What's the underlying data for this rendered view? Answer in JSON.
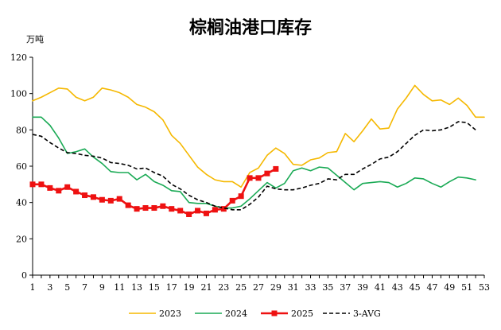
{
  "chart_data": {
    "type": "line",
    "title": "棕榈油港口库存",
    "ylabel": "万吨",
    "xlabel": "",
    "ylim": [
      0,
      120
    ],
    "yticks": [
      0,
      20,
      40,
      60,
      80,
      100,
      120
    ],
    "xlim": [
      1,
      53
    ],
    "xticks": [
      1,
      3,
      5,
      7,
      9,
      11,
      13,
      15,
      17,
      19,
      21,
      23,
      25,
      27,
      29,
      31,
      33,
      35,
      37,
      39,
      41,
      43,
      45,
      47,
      49,
      51,
      53
    ],
    "grid": false,
    "legend_position": "bottom",
    "series": [
      {
        "name": "2023",
        "color": "#F5B800",
        "style": "solid",
        "marker": "none",
        "x": [
          1,
          2,
          3,
          4,
          5,
          6,
          7,
          8,
          9,
          10,
          11,
          12,
          13,
          14,
          15,
          16,
          17,
          18,
          19,
          20,
          21,
          22,
          23,
          24,
          25,
          26,
          27,
          28,
          29,
          30,
          31,
          32,
          33,
          34,
          35,
          36,
          37,
          38,
          39,
          40,
          41,
          42,
          43,
          44,
          45,
          46,
          47,
          48,
          49,
          50,
          51,
          52,
          53
        ],
        "y": [
          96,
          98,
          100.5,
          103,
          102.5,
          98,
          96,
          98,
          103,
          102,
          100.5,
          98,
          94,
          92.5,
          90,
          85.5,
          77,
          72.5,
          66,
          59.5,
          55.5,
          52.5,
          51.5,
          51.5,
          48.5,
          56.5,
          59,
          66,
          70,
          67,
          61,
          60.5,
          63.5,
          64.5,
          67.5,
          68,
          78,
          73.5,
          79.5,
          86,
          80.5,
          81,
          91.5,
          97.5,
          104.5,
          99.5,
          96,
          96.5,
          94,
          97.5,
          93.5,
          87,
          87
        ]
      },
      {
        "name": "2024",
        "color": "#1AAA55",
        "style": "solid",
        "marker": "none",
        "x": [
          1,
          2,
          3,
          4,
          5,
          6,
          7,
          8,
          9,
          10,
          11,
          12,
          13,
          14,
          15,
          16,
          17,
          18,
          19,
          20,
          21,
          22,
          23,
          24,
          25,
          26,
          27,
          28,
          29,
          30,
          31,
          32,
          33,
          34,
          35,
          36,
          37,
          38,
          39,
          40,
          41,
          42,
          43,
          44,
          45,
          46,
          47,
          48,
          49,
          50,
          51,
          52
        ],
        "y": [
          87,
          87,
          82.5,
          75.5,
          67,
          68,
          69.5,
          65,
          61.5,
          57,
          56.5,
          56.5,
          52.5,
          55.5,
          51.5,
          49.5,
          46.5,
          46,
          40,
          39.5,
          39.5,
          38,
          37,
          37,
          38,
          42,
          46.5,
          51,
          48,
          50.5,
          57.5,
          59,
          57.5,
          59.5,
          59,
          55,
          51,
          47,
          50.5,
          51,
          51.5,
          51,
          48.5,
          50.5,
          53.5,
          53,
          50.5,
          48.5,
          51.5,
          54,
          53.5,
          52.5
        ]
      },
      {
        "name": "2025",
        "color": "#EE1111",
        "style": "solid",
        "marker": "square",
        "x": [
          1,
          2,
          3,
          4,
          5,
          6,
          7,
          8,
          9,
          10,
          11,
          12,
          13,
          14,
          15,
          16,
          17,
          18,
          19,
          20,
          21,
          22,
          23,
          24,
          25,
          26,
          27,
          28,
          29
        ],
        "y": [
          50,
          50,
          48,
          46.5,
          48.5,
          46,
          44,
          43,
          41.5,
          41,
          42,
          38.5,
          36.5,
          37,
          37,
          38,
          36.5,
          35.5,
          33.5,
          35.5,
          34,
          36,
          36.5,
          41,
          43.5,
          53.5,
          53.5,
          56,
          58.5
        ]
      },
      {
        "name": "3-AVG",
        "color": "#000000",
        "style": "dashed",
        "marker": "none",
        "x": [
          1,
          2,
          3,
          4,
          5,
          6,
          7,
          8,
          9,
          10,
          11,
          12,
          13,
          14,
          15,
          16,
          17,
          18,
          19,
          20,
          21,
          22,
          23,
          24,
          25,
          26,
          27,
          28,
          29,
          30,
          31,
          32,
          33,
          34,
          35,
          36,
          37,
          38,
          39,
          40,
          41,
          42,
          43,
          44,
          45,
          46,
          47,
          48,
          49,
          50,
          51,
          52
        ],
        "y": [
          77.5,
          76.5,
          73,
          70,
          67.5,
          67,
          66,
          65.5,
          64.5,
          62,
          61.5,
          60.5,
          58.5,
          59,
          56.5,
          54.5,
          50,
          47.5,
          44,
          41.5,
          40,
          38,
          37,
          36,
          36,
          39,
          43,
          49,
          47.5,
          47,
          47,
          48,
          49.5,
          50.5,
          53,
          52.5,
          55.5,
          55.5,
          58.5,
          61,
          64,
          65,
          68,
          72.5,
          77,
          80,
          79.5,
          80,
          81.5,
          84.5,
          84,
          80
        ]
      }
    ]
  }
}
